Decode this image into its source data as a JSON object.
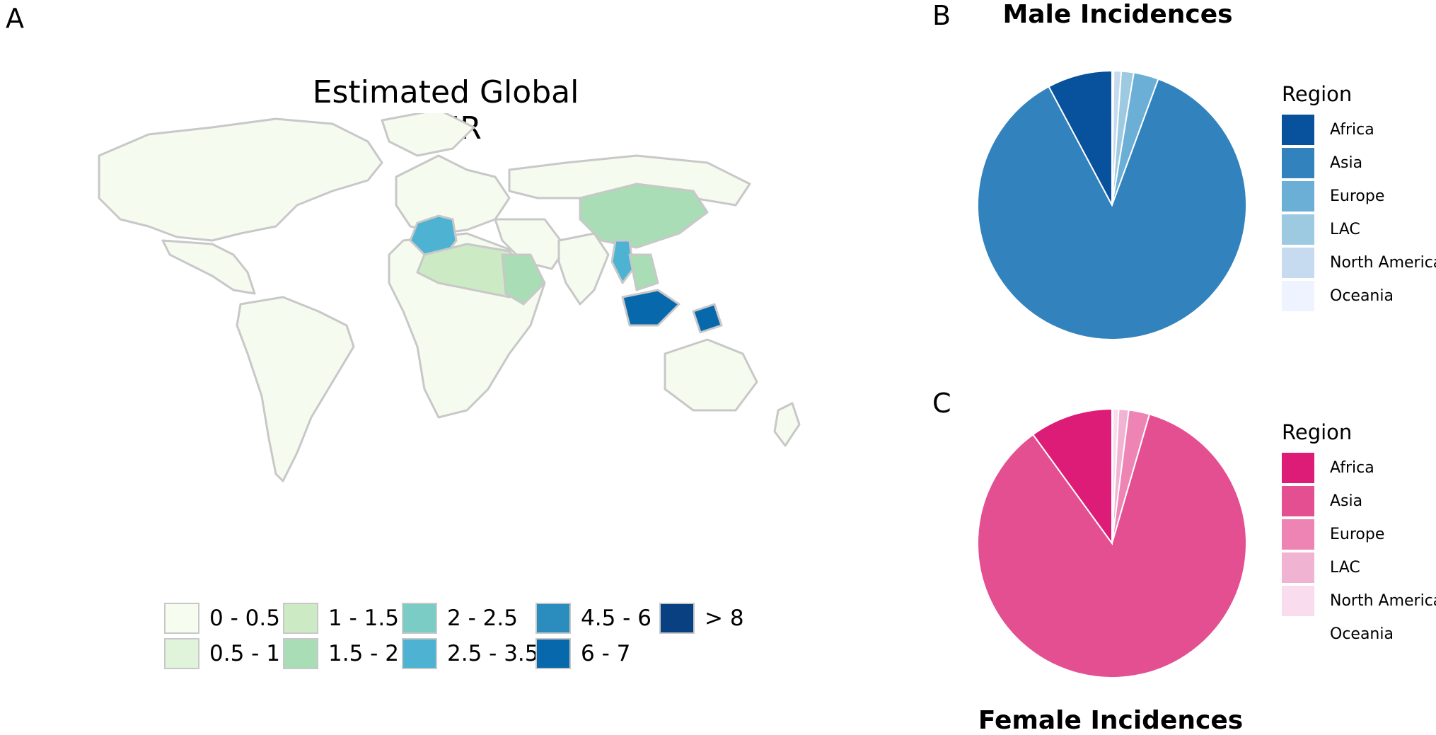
{
  "panel_letters": {
    "a": "A",
    "b": "B",
    "c": "C"
  },
  "colors": {
    "map_fill": "#f5fbee",
    "map_stroke": "#c8c8c8",
    "male": [
      "#08519c",
      "#3182bd",
      "#6baed6",
      "#9ecae1",
      "#c6dbef",
      "#eff3ff"
    ],
    "female": [
      "#dd1c77",
      "#e34f91",
      "#ee84b4",
      "#f1b3d2",
      "#f9dced",
      "#ffffff"
    ]
  },
  "chart_data": [
    {
      "type": "choropleth-map",
      "title": "Estimated Global ASIR",
      "legend": [
        {
          "label": "0 - 0.5",
          "color": "#f7fcf0"
        },
        {
          "label": "0.5 - 1",
          "color": "#e0f3db"
        },
        {
          "label": "1 - 1.5",
          "color": "#ccebc5"
        },
        {
          "label": "1.5 - 2",
          "color": "#a8ddb5"
        },
        {
          "label": "2 - 2.5",
          "color": "#7bccc4"
        },
        {
          "label": "2.5 - 3.5",
          "color": "#4eb3d3"
        },
        {
          "label": "4.5 - 6",
          "color": "#2b8cbe"
        },
        {
          "label": "6 - 7",
          "color": "#0868ac"
        },
        {
          "label": "> 8",
          "color": "#084081"
        }
      ],
      "legend_placement": "bottom"
    },
    {
      "type": "pie",
      "title": "Male Incidences",
      "legend_title": "Region",
      "labels": [
        "Africa",
        "Asia",
        "Europe",
        "LAC",
        "North America",
        "Oceania"
      ],
      "values": [
        7.8,
        86.6,
        3.0,
        1.5,
        0.9,
        0.2
      ]
    },
    {
      "type": "pie",
      "title": "Female Incidences",
      "legend_title": "Region",
      "labels": [
        "Africa",
        "Asia",
        "Europe",
        "LAC",
        "North America",
        "Oceania"
      ],
      "values": [
        10.0,
        85.5,
        2.5,
        1.2,
        0.7,
        0.1
      ]
    }
  ]
}
